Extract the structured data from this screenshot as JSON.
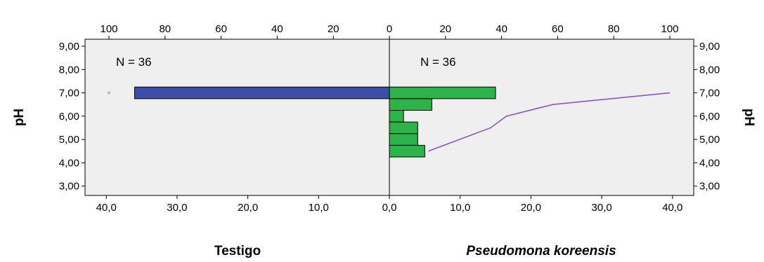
{
  "chart_data": {
    "type": "bar",
    "orientation": "horizontal",
    "layout": "back-to-back",
    "grid": false,
    "y_axis": {
      "left_label": "pH",
      "right_label": "pH",
      "ticks": [
        "9,00",
        "8,00",
        "7,00",
        "6,00",
        "5,00",
        "4,00",
        "3,00"
      ],
      "tick_values": [
        9,
        8,
        7,
        6,
        5,
        4,
        3
      ],
      "ylim": [
        2.6,
        9.3
      ]
    },
    "left_panel": {
      "name": "Testigo",
      "n_label": "N = 36",
      "xlim": [
        0,
        43
      ],
      "bottom_ticks": [
        "40,0",
        "30,0",
        "20,0",
        "10,0",
        "0,0"
      ],
      "bottom_tick_values": [
        40,
        30,
        20,
        10,
        0
      ],
      "bars": [
        {
          "ph": 7.0,
          "count": 36
        }
      ],
      "cumulative_percent": [
        {
          "ph": 7.0,
          "percent": 100
        }
      ],
      "bar_color": "#3a4fa8",
      "line_color": "#b5a8e0"
    },
    "right_panel": {
      "name": "Pseudomona koreensis",
      "n_label": "N = 36",
      "xlim": [
        0,
        43
      ],
      "bottom_ticks": [
        "0,0",
        "10,0",
        "20,0",
        "30,0",
        "40,0"
      ],
      "bottom_tick_values": [
        0,
        10,
        20,
        30,
        40
      ],
      "bars": [
        {
          "ph": 7.0,
          "count": 15
        },
        {
          "ph": 6.5,
          "count": 6
        },
        {
          "ph": 6.0,
          "count": 2
        },
        {
          "ph": 5.5,
          "count": 4
        },
        {
          "ph": 5.0,
          "count": 4
        },
        {
          "ph": 4.5,
          "count": 5
        }
      ],
      "cumulative_percent": [
        {
          "ph": 4.5,
          "percent": 13.9
        },
        {
          "ph": 5.5,
          "percent": 36.1
        },
        {
          "ph": 6.0,
          "percent": 41.7
        },
        {
          "ph": 6.5,
          "percent": 58.3
        },
        {
          "ph": 7.0,
          "percent": 100
        }
      ],
      "bar_color": "#2db34a",
      "line_color": "#8a55c8"
    },
    "top_axis": {
      "ticks": [
        "100",
        "80",
        "60",
        "40",
        "20",
        "0",
        "20",
        "40",
        "60",
        "80",
        "100"
      ],
      "left_values": [
        100,
        80,
        60,
        40,
        20,
        0
      ],
      "right_values": [
        0,
        20,
        40,
        60,
        80,
        100
      ],
      "max": 100
    },
    "plot_bg": "#efefef",
    "bar_height_units": 0.5
  }
}
